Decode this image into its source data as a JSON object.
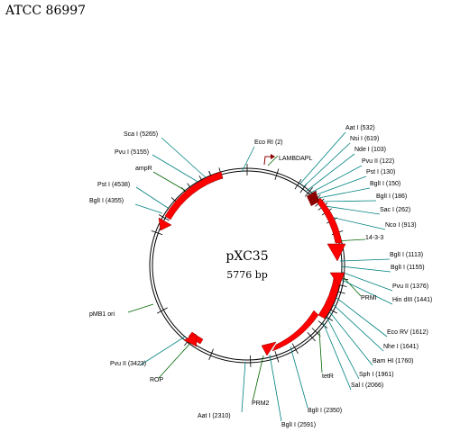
{
  "header": {
    "accession": "ATCC 86997"
  },
  "plasmid": {
    "name": "pXC35",
    "size": "5776 bp"
  },
  "colors": {
    "feature_fill": "#ff0000",
    "feature_stroke": "#8b0000",
    "site_line": "#008080",
    "feature_line": "#006400",
    "promoter_arrow": "#8b0000",
    "backbone": "#000000"
  },
  "labels": {
    "ecori": "Eco    RI (2)",
    "lambda_pl": "LAMBDAPL",
    "aat": "Aat     I (532)",
    "nsi": "Nsi     I (619)",
    "nde": "Nde    I (103)",
    "pvu2_1": "Pvu     II (122)",
    "pst_1": "Pst     I (130)",
    "bgl1_1": "BglI       I (150)",
    "bgl1_2": "BglI       I (186)",
    "sac": "Sac    I (262)",
    "nco": "Nco     I (913)",
    "r1433": "14-3-3",
    "bgl1_3": "BglI       I (1113)",
    "bgl1_4": "BglI       I (1155)",
    "pvu2_2": "Pvu      II (1376)",
    "hin": "Hin    dIII (1441)",
    "prmi": "PRMI",
    "eco_rv": "Eco    RV (1612)",
    "nhe": "Nhe     I (1641)",
    "bam": "Bam    HI (1760)",
    "sph": "Sph     I (1961)",
    "sal": "Sal    I (2066)",
    "tetr": "tetR",
    "bgl1_5": "BglI      I (2350)",
    "bgl1_6": "BglI     I (2591)",
    "aat2": "Aat      I (2310)",
    "prm2": "PRM2",
    "rop": "ROP",
    "pvu2_3": "Pvu      II (3423)",
    "pmb1": "pMB1 ori",
    "bgl1_7": "BglI      I (4355)",
    "pst_2": "Pst      I (4538)",
    "ampr": "ampR",
    "pvu_5155": "Pvu       I (5155)",
    "sca": "Sca      I (5265)"
  }
}
